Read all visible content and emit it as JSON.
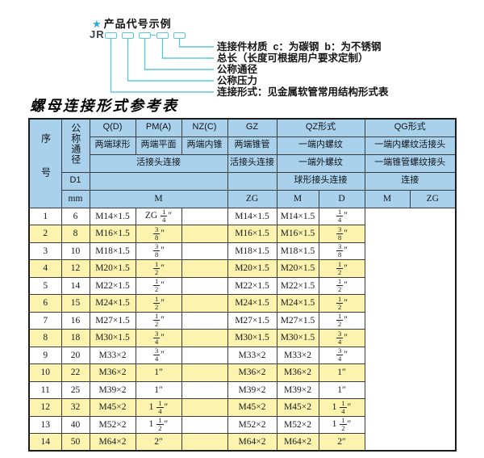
{
  "colors": {
    "header_blue": "#a9d1ec",
    "row_yellow": "#fbf3ae",
    "line_cyan": "#5ec7e2",
    "star_blue": "#2aa9dc",
    "border_dark": "#3b3b3b"
  },
  "diagram": {
    "star": "★",
    "title": "产品代号示例",
    "code_prefix": "JR",
    "labels": [
      "连接件材质  c：为碳钢  b：为不锈钢",
      "总长（长度可根据用户要求定制）",
      "公称通径",
      "公称压力",
      "连接形式：见金属软管常用结构形式表"
    ]
  },
  "table": {
    "title": "螺母连接形式参考表",
    "header": {
      "seq": "序号",
      "nominal": "公称通径",
      "d1": "D1",
      "mm": "mm",
      "union_conn": "活接头连接",
      "m_unit": "M",
      "col_q": {
        "code": "Q(D)",
        "type": "两端球形"
      },
      "col_pm": {
        "code": "PM(A)",
        "type": "两端平面"
      },
      "col_nz": {
        "code": "NZ(C)",
        "type": "两端内锥"
      },
      "col_gz": {
        "code": "GZ",
        "type": "两端锥管",
        "conn": "活接头连接",
        "unit": "ZG"
      },
      "col_qz": {
        "code": "QZ形式",
        "row2": "一端内螺纹",
        "row3": "一端外螺纹",
        "row4": "球形接头连接",
        "u1": "M",
        "u2": "D"
      },
      "col_qg": {
        "code": "QG形式",
        "row2": "一端内螺纹活接头",
        "row3": "一端锥管螺纹接头",
        "row4": "连接",
        "u1": "M",
        "u2": "ZG"
      }
    },
    "rows": [
      {
        "no": "1",
        "dn": "6",
        "m": "M14×1.5",
        "gz": "ZG 1/4″",
        "qz_m": "",
        "qz_d": "M14×1.5",
        "qg_m": "M14×1.5",
        "qg_zg": "1/4″"
      },
      {
        "no": "2",
        "dn": "8",
        "m": "M16×1.5",
        "gz": "3/8″",
        "qz_m": "",
        "qz_d": "M16×1.5",
        "qg_m": "M16×1.5",
        "qg_zg": "3/8″"
      },
      {
        "no": "3",
        "dn": "10",
        "m": "M18×1.5",
        "gz": "3/8″",
        "qz_m": "",
        "qz_d": "M18×1.5",
        "qg_m": "M18×1.5",
        "qg_zg": "3/8″"
      },
      {
        "no": "4",
        "dn": "12",
        "m": "M20×1.5",
        "gz": "1/2″",
        "qz_m": "",
        "qz_d": "M20×1.5",
        "qg_m": "M20×1.5",
        "qg_zg": "1/2″"
      },
      {
        "no": "5",
        "dn": "14",
        "m": "M22×1.5",
        "gz": "1/2″",
        "qz_m": "",
        "qz_d": "M22×1.5",
        "qg_m": "M22×1.5",
        "qg_zg": "1/2″"
      },
      {
        "no": "6",
        "dn": "15",
        "m": "M24×1.5",
        "gz": "1/2″",
        "qz_m": "",
        "qz_d": "M24×1.5",
        "qg_m": "M24×1.5",
        "qg_zg": "1/2″"
      },
      {
        "no": "7",
        "dn": "16",
        "m": "M27×1.5",
        "gz": "1/2″",
        "qz_m": "",
        "qz_d": "M27×1.5",
        "qg_m": "M27×1.5",
        "qg_zg": "1/2″"
      },
      {
        "no": "8",
        "dn": "18",
        "m": "M30×1.5",
        "gz": "3/4″",
        "qz_m": "",
        "qz_d": "M30×1.5",
        "qg_m": "M30×1.5",
        "qg_zg": "3/4″"
      },
      {
        "no": "9",
        "dn": "20",
        "m": "M33×2",
        "gz": "3/4″",
        "qz_m": "",
        "qz_d": "M33×2",
        "qg_m": "M33×2",
        "qg_zg": "3/4″"
      },
      {
        "no": "10",
        "dn": "22",
        "m": "M36×2",
        "gz": "1″",
        "qz_m": "",
        "qz_d": "M36×2",
        "qg_m": "M36×2",
        "qg_zg": "1″"
      },
      {
        "no": "11",
        "dn": "25",
        "m": "M39×2",
        "gz": "1″",
        "qz_m": "",
        "qz_d": "M39×2",
        "qg_m": "M39×2",
        "qg_zg": "1″"
      },
      {
        "no": "12",
        "dn": "32",
        "m": "M45×2",
        "gz": "1 1/4″",
        "qz_m": "",
        "qz_d": "M45×2",
        "qg_m": "M45×2",
        "qg_zg": "1 1/4″"
      },
      {
        "no": "13",
        "dn": "40",
        "m": "M52×2",
        "gz": "1 1/2″",
        "qz_m": "",
        "qz_d": "M52×2",
        "qg_m": "M52×2",
        "qg_zg": "1 1/2″"
      },
      {
        "no": "14",
        "dn": "50",
        "m": "M64×2",
        "gz": "2″",
        "qz_m": "",
        "qz_d": "M64×2",
        "qg_m": "M64×2",
        "qg_zg": "2″"
      }
    ]
  }
}
